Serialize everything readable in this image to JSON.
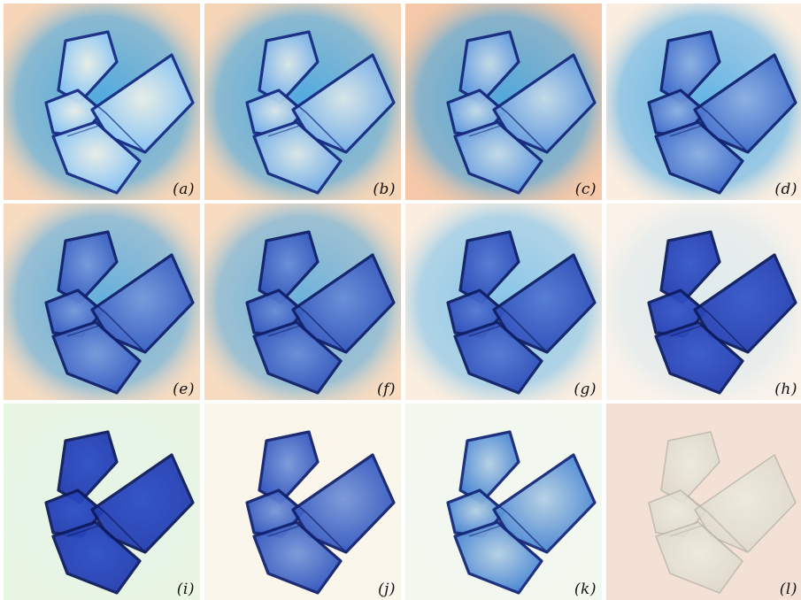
{
  "figure": {
    "panels": [
      {
        "label": "(a)",
        "dye": 0.1,
        "bg": "#f6d5b7",
        "halo": "#2aa0e8",
        "halo_level": 0.95,
        "tint": "#7ec8ff"
      },
      {
        "label": "(b)",
        "dye": 0.2,
        "bg": "#f6d5b7",
        "halo": "#2aa0e8",
        "halo_level": 0.95,
        "tint": "#6fb8f5"
      },
      {
        "label": "(c)",
        "dye": 0.3,
        "bg": "#f4c8a8",
        "halo": "#2aa0e8",
        "halo_level": 0.95,
        "tint": "#5aa6ef"
      },
      {
        "label": "(d)",
        "dye": 0.55,
        "bg": "#fbeee0",
        "halo": "#2c9ee8",
        "halo_level": 0.85,
        "tint": "#3f7fe0"
      },
      {
        "label": "(e)",
        "dye": 0.65,
        "bg": "#f8dcc1",
        "halo": "#2c9ee8",
        "halo_level": 0.85,
        "tint": "#3a70d8"
      },
      {
        "label": "(f)",
        "dye": 0.7,
        "bg": "#f8dcc1",
        "halo": "#2c9ee8",
        "halo_level": 0.8,
        "tint": "#3468d2"
      },
      {
        "label": "(g)",
        "dye": 0.78,
        "bg": "#fbeee0",
        "halo": "#3aaaf0",
        "halo_level": 0.7,
        "tint": "#2f5ecf"
      },
      {
        "label": "(h)",
        "dye": 0.9,
        "bg": "#fbf3ea",
        "halo": "#9cd6f4",
        "halo_level": 0.35,
        "tint": "#2a4fc8"
      },
      {
        "label": "(i)",
        "dye": 0.95,
        "bg": "#eaf6e4",
        "halo": "#d6eff0",
        "halo_level": 0.25,
        "tint": "#2a4ec6"
      },
      {
        "label": "(j)",
        "dye": 0.6,
        "bg": "#fbf6ec",
        "halo": "#f3f1e6",
        "halo_level": 0.1,
        "tint": "#2b5fd0"
      },
      {
        "label": "(k)",
        "dye": 0.35,
        "bg": "#f3f8ef",
        "halo": "#e7f3ec",
        "halo_level": 0.1,
        "tint": "#3b8fe0"
      },
      {
        "label": "(l)",
        "dye": 0.0,
        "bg": "#f4e1d6",
        "halo": "#f1e6dc",
        "halo_level": 0.05,
        "tint": "#d9d9cf"
      }
    ]
  }
}
